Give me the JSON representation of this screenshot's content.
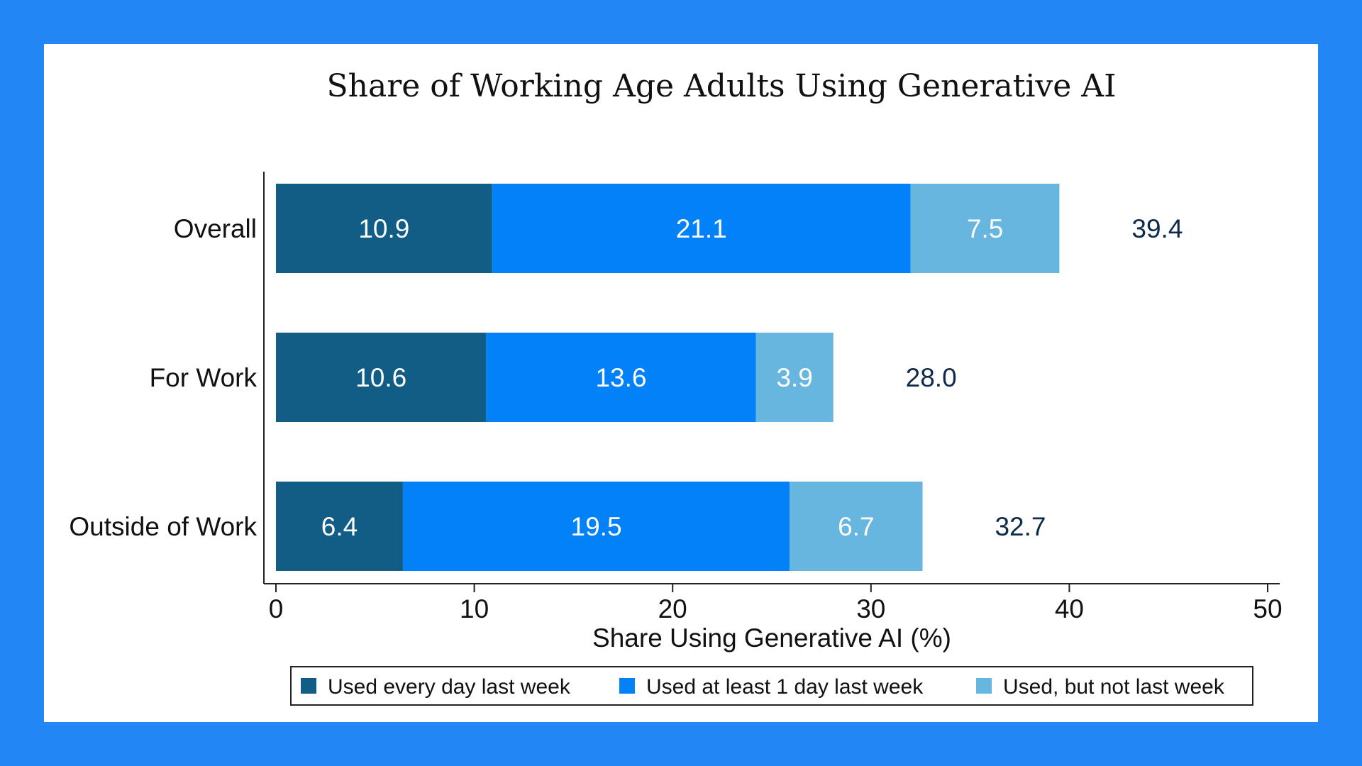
{
  "chart_data": {
    "type": "bar",
    "orientation": "horizontal",
    "stacked": true,
    "title": "Share of Working Age Adults Using Generative AI",
    "xlabel": "Share Using Generative AI (%)",
    "ylabel": "",
    "xlim": [
      0,
      50
    ],
    "xticks": [
      "0",
      "10",
      "20",
      "30",
      "40",
      "50"
    ],
    "categories": [
      "Overall",
      "For Work",
      "Outside of Work"
    ],
    "series": [
      {
        "name": "Used every day last week",
        "color": "#125d86",
        "values": [
          10.9,
          10.6,
          6.4
        ],
        "labels": [
          "10.9",
          "10.6",
          "6.4"
        ]
      },
      {
        "name": "Used at least 1 day last week",
        "color": "#0381f9",
        "values": [
          21.1,
          13.6,
          19.5
        ],
        "labels": [
          "21.1",
          "13.6",
          "19.5"
        ]
      },
      {
        "name": "Used, but not last week",
        "color": "#67b6e0",
        "values": [
          7.5,
          3.9,
          6.7
        ],
        "labels": [
          "7.5",
          "3.9",
          "6.7"
        ]
      }
    ],
    "totals": [
      "39.4",
      "28.0",
      "32.7"
    ],
    "grid": false,
    "legend_position": "bottom"
  }
}
